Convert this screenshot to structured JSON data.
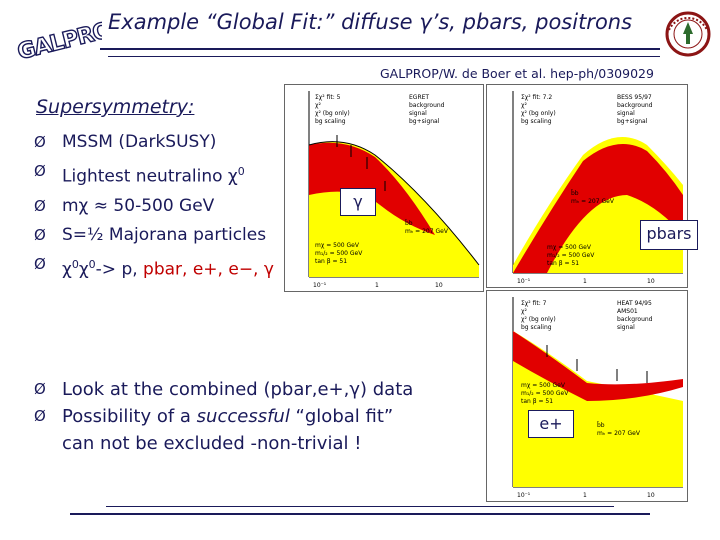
{
  "slide": {
    "title": "Example “Global Fit:” diffuse γ’s, pbars, positrons",
    "logo_text": "GALPROP",
    "reference": "GALPROP/W. de Boer et al. hep-ph/0309029",
    "susy_heading": "Supersymmetry:",
    "bullet_mark": "Ø",
    "susy_items": [
      {
        "text": "MSSM (DarkSUSY)"
      },
      {
        "text": "Lightest neutralino χ",
        "sup": "0"
      },
      {
        "text": "mχ ≈ 50-500 GeV"
      },
      {
        "text": "S=½ Majorana particles"
      },
      {
        "pre": "χ",
        "sup1": "0",
        "mid": "χ",
        "sup2": "0",
        "post": "-> p, ",
        "red": "pbar, e+, e−, γ"
      }
    ],
    "bottom_items": [
      {
        "text": "Look at the combined (pbar,e+,γ) data"
      },
      {
        "pre": "Possibility of a ",
        "italic": "successful",
        "post": " “global fit”",
        "line2": "can not be excluded -non-trivial !"
      }
    ],
    "plot_tags": {
      "gamma": "γ",
      "pbars": "pbars",
      "positrons": "e+"
    },
    "colors": {
      "navy": "#1a1a5a",
      "red": "#c00000",
      "plot_red": "#e10000",
      "plot_yellow": "#ffff00"
    }
  }
}
